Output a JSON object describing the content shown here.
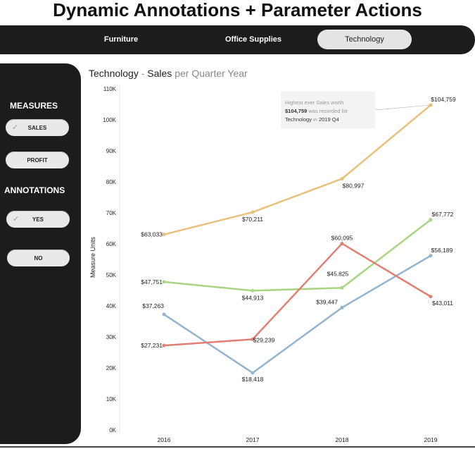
{
  "page": {
    "title": "Dynamic Annotations + Parameter Actions"
  },
  "tabs": [
    {
      "label": "Furniture",
      "active": false
    },
    {
      "label": "Office Supplies",
      "active": false
    },
    {
      "label": "Technology",
      "active": true
    }
  ],
  "sidebar": {
    "measures_title": "MEASURES",
    "measures": [
      {
        "label": "SALES",
        "selected": true,
        "check": "✓"
      },
      {
        "label": "PROFIT",
        "selected": false
      }
    ],
    "annotations_title": "ANNOTATIONS",
    "annotations": [
      {
        "label": "YES",
        "selected": true,
        "check": "✓"
      },
      {
        "label": "NO",
        "selected": false
      }
    ]
  },
  "chart_header": {
    "category": "Technology",
    "separator": " - ",
    "measure": "Sales",
    "suffix": " per Quarter Year"
  },
  "chart_data": {
    "type": "line",
    "categories": [
      "2016",
      "2017",
      "2018",
      "2019"
    ],
    "ylabel": "Measure Units",
    "xlabel": "",
    "ylim": [
      0,
      110000
    ],
    "yticks": [
      0,
      10000,
      20000,
      30000,
      40000,
      50000,
      60000,
      70000,
      80000,
      90000,
      100000,
      110000
    ],
    "ytick_labels": [
      "0K",
      "10K",
      "20K",
      "30K",
      "40K",
      "50K",
      "60K",
      "70K",
      "80K",
      "90K",
      "100K",
      "110K"
    ],
    "grid": false,
    "series": [
      {
        "color": "#e8c07a",
        "values": [
          63033,
          70211,
          80997,
          104759
        ],
        "labels": [
          "$63,033",
          "$70,211",
          "$80,997",
          "$104,759"
        ]
      },
      {
        "color": "#a8d582",
        "values": [
          47751,
          44913,
          45825,
          67772
        ],
        "labels": [
          "$47,751",
          "$44,913",
          "$45,825",
          "$67,772"
        ]
      },
      {
        "color": "#93b4cf",
        "values": [
          37263,
          18418,
          39447,
          56189
        ],
        "labels": [
          "$37,263",
          "$18,418",
          "$39,447",
          "$56,189"
        ]
      },
      {
        "color": "#e07f72",
        "values": [
          27231,
          29239,
          60095,
          43011
        ],
        "labels": [
          "$27,231",
          "$29,239",
          "$60,095",
          "$43,011"
        ]
      }
    ],
    "annotation": {
      "line1": "Highest ever Sales worth",
      "line2_value": "$104,759",
      "line2_rest": " was recorded for",
      "line3_category": "Technology",
      "line3_mid": " in ",
      "line3_period": "2019 Q4"
    }
  }
}
